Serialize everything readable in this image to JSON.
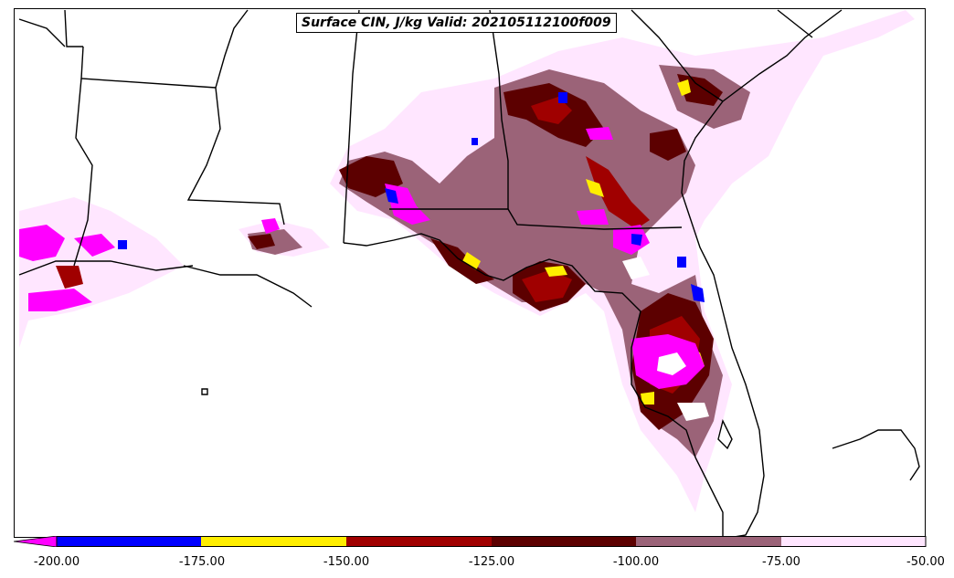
{
  "title": "Surface CIN, J/kg Valid: 202105112100f009",
  "legend": {
    "ticks": [
      "-200.00",
      "-175.00",
      "-150.00",
      "-125.00",
      "-100.00",
      "-75.00",
      "-50.00"
    ],
    "colors": [
      "#ff00ff",
      "#0000ff",
      "#ffee00",
      "#a00000",
      "#5c0000",
      "#9b6378",
      "#ffe6ff"
    ],
    "bins": [
      {
        "range": "< -200",
        "color": "#ff00ff"
      },
      {
        "range": "-200 to -175",
        "color": "#0000ff"
      },
      {
        "range": "-175 to -150",
        "color": "#ffee00"
      },
      {
        "range": "-150 to -125",
        "color": "#a00000"
      },
      {
        "range": "-125 to -100",
        "color": "#5c0000"
      },
      {
        "range": "-100 to -75",
        "color": "#9b6378"
      },
      {
        "range": "-75 to -50",
        "color": "#ffe6ff"
      }
    ]
  }
}
